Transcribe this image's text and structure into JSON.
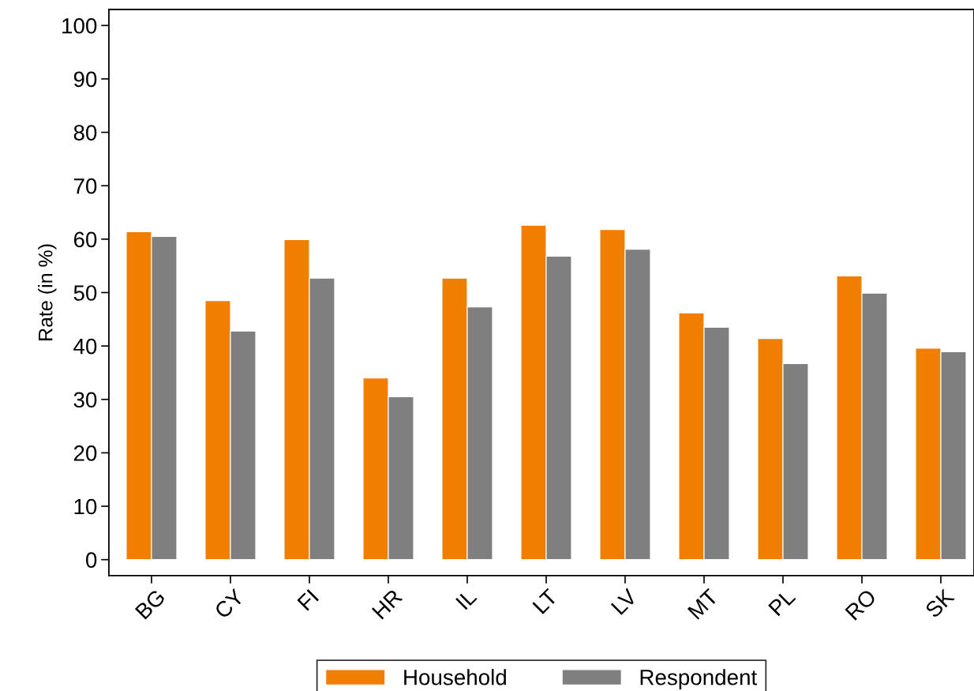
{
  "chart_data": {
    "type": "bar",
    "ylabel": "Rate (in %)",
    "categories": [
      "BG",
      "CY",
      "FI",
      "HR",
      "IL",
      "LT",
      "LV",
      "MT",
      "PL",
      "RO",
      "SK"
    ],
    "series": [
      {
        "name": "Household",
        "color": "#f27e00",
        "values": [
          61.4,
          48.5,
          59.9,
          34.0,
          52.7,
          62.6,
          61.8,
          46.2,
          41.4,
          53.1,
          39.6
        ]
      },
      {
        "name": "Respondent",
        "color": "#7f7f7f",
        "values": [
          60.5,
          42.8,
          52.7,
          30.5,
          47.3,
          56.8,
          58.1,
          43.5,
          36.7,
          49.9,
          38.9
        ]
      }
    ],
    "ylim": [
      -3,
      103
    ],
    "yticks": [
      0,
      10,
      20,
      30,
      40,
      50,
      60,
      70,
      80,
      90,
      100
    ],
    "grid": false,
    "legend": "bottom"
  }
}
